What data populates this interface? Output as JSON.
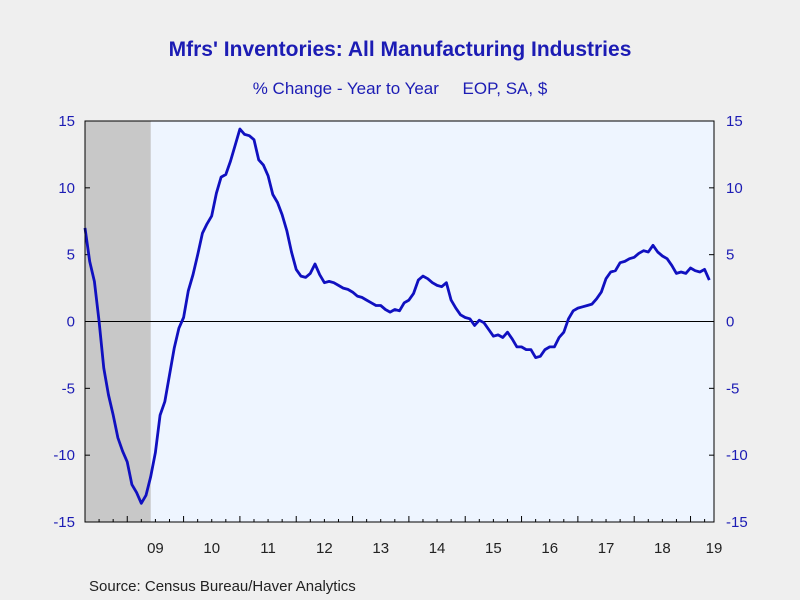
{
  "header": {
    "title": "Mfrs' Inventories: All Manufacturing Industries",
    "subtitle": "% Change - Year to Year     EOP, SA, $"
  },
  "footer": {
    "source": "Source:  Census Bureau/Haver Analytics"
  },
  "colors": {
    "line": "#1010c0",
    "plot_bg": "#eef5ff",
    "recession": "#c8c8c8",
    "text": "#1c1cb4"
  },
  "chart_data": {
    "type": "line",
    "title": "Mfrs' Inventories: All Manufacturing Industries",
    "subtitle": "% Change - Year to Year     EOP, SA, $",
    "xlabel": "",
    "ylabel": "",
    "xlim": [
      "2008-04",
      "2019-06"
    ],
    "ylim": [
      -15,
      15
    ],
    "yticks": [
      -15,
      -10,
      -5,
      0,
      5,
      10,
      15
    ],
    "ytick_labels": [
      "-15",
      "-10",
      "-5",
      "0",
      "5",
      "10",
      "15"
    ],
    "xtick_labels": [
      "09",
      "10",
      "11",
      "12",
      "13",
      "14",
      "15",
      "16",
      "17",
      "18",
      "19"
    ],
    "grid": false,
    "zero_line": true,
    "axes": "left and right",
    "recession_shading": {
      "start": "2008-04",
      "end": "2009-06"
    },
    "series": [
      {
        "points": [
          [
            "2008-04",
            7.0
          ],
          [
            "2008-05",
            4.5
          ],
          [
            "2008-06",
            3.0
          ],
          [
            "2008-07",
            0.0
          ],
          [
            "2008-08",
            -3.5
          ],
          [
            "2008-09",
            -5.5
          ],
          [
            "2008-10",
            -7.0
          ],
          [
            "2008-11",
            -8.7
          ],
          [
            "2008-12",
            -9.7
          ],
          [
            "2009-01",
            -10.5
          ],
          [
            "2009-02",
            -12.2
          ],
          [
            "2009-03",
            -12.8
          ],
          [
            "2009-04",
            -13.6
          ],
          [
            "2009-05",
            -13.0
          ],
          [
            "2009-06",
            -11.6
          ],
          [
            "2009-07",
            -9.8
          ],
          [
            "2009-08",
            -7.0
          ],
          [
            "2009-09",
            -6.0
          ],
          [
            "2009-10",
            -4.0
          ],
          [
            "2009-11",
            -2.0
          ],
          [
            "2009-12",
            -0.5
          ],
          [
            "2010-01",
            0.3
          ],
          [
            "2010-02",
            2.3
          ],
          [
            "2010-03",
            3.5
          ],
          [
            "2010-04",
            5.0
          ],
          [
            "2010-05",
            6.6
          ],
          [
            "2010-06",
            7.3
          ],
          [
            "2010-07",
            7.9
          ],
          [
            "2010-08",
            9.6
          ],
          [
            "2010-09",
            10.8
          ],
          [
            "2010-10",
            11.0
          ],
          [
            "2010-11",
            12.0
          ],
          [
            "2010-12",
            13.2
          ],
          [
            "2011-01",
            14.4
          ],
          [
            "2011-02",
            14.0
          ],
          [
            "2011-03",
            13.9
          ],
          [
            "2011-04",
            13.6
          ],
          [
            "2011-05",
            12.1
          ],
          [
            "2011-06",
            11.7
          ],
          [
            "2011-07",
            10.9
          ],
          [
            "2011-08",
            9.5
          ],
          [
            "2011-09",
            8.9
          ],
          [
            "2011-10",
            8.0
          ],
          [
            "2011-11",
            6.8
          ],
          [
            "2011-12",
            5.2
          ],
          [
            "2012-01",
            3.9
          ],
          [
            "2012-02",
            3.4
          ],
          [
            "2012-03",
            3.3
          ],
          [
            "2012-04",
            3.6
          ],
          [
            "2012-05",
            4.3
          ],
          [
            "2012-06",
            3.5
          ],
          [
            "2012-07",
            2.9
          ],
          [
            "2012-08",
            3.0
          ],
          [
            "2012-09",
            2.9
          ],
          [
            "2012-10",
            2.7
          ],
          [
            "2012-11",
            2.5
          ],
          [
            "2012-12",
            2.4
          ],
          [
            "2013-01",
            2.2
          ],
          [
            "2013-02",
            1.9
          ],
          [
            "2013-03",
            1.8
          ],
          [
            "2013-04",
            1.6
          ],
          [
            "2013-05",
            1.4
          ],
          [
            "2013-06",
            1.2
          ],
          [
            "2013-07",
            1.2
          ],
          [
            "2013-08",
            0.9
          ],
          [
            "2013-09",
            0.7
          ],
          [
            "2013-10",
            0.9
          ],
          [
            "2013-11",
            0.8
          ],
          [
            "2013-12",
            1.4
          ],
          [
            "2014-01",
            1.6
          ],
          [
            "2014-02",
            2.1
          ],
          [
            "2014-03",
            3.1
          ],
          [
            "2014-04",
            3.4
          ],
          [
            "2014-05",
            3.2
          ],
          [
            "2014-06",
            2.9
          ],
          [
            "2014-07",
            2.7
          ],
          [
            "2014-08",
            2.6
          ],
          [
            "2014-09",
            2.9
          ],
          [
            "2014-10",
            1.6
          ],
          [
            "2014-11",
            1.0
          ],
          [
            "2014-12",
            0.5
          ],
          [
            "2015-01",
            0.3
          ],
          [
            "2015-02",
            0.2
          ],
          [
            "2015-03",
            -0.3
          ],
          [
            "2015-04",
            0.1
          ],
          [
            "2015-05",
            -0.1
          ],
          [
            "2015-06",
            -0.6
          ],
          [
            "2015-07",
            -1.1
          ],
          [
            "2015-08",
            -1.0
          ],
          [
            "2015-09",
            -1.2
          ],
          [
            "2015-10",
            -0.8
          ],
          [
            "2015-11",
            -1.3
          ],
          [
            "2015-12",
            -1.9
          ],
          [
            "2016-01",
            -1.9
          ],
          [
            "2016-02",
            -2.1
          ],
          [
            "2016-03",
            -2.1
          ],
          [
            "2016-04",
            -2.7
          ],
          [
            "2016-05",
            -2.6
          ],
          [
            "2016-06",
            -2.1
          ],
          [
            "2016-07",
            -1.9
          ],
          [
            "2016-08",
            -1.9
          ],
          [
            "2016-09",
            -1.2
          ],
          [
            "2016-10",
            -0.8
          ],
          [
            "2016-11",
            0.2
          ],
          [
            "2016-12",
            0.8
          ],
          [
            "2017-01",
            1.0
          ],
          [
            "2017-02",
            1.1
          ],
          [
            "2017-03",
            1.2
          ],
          [
            "2017-04",
            1.3
          ],
          [
            "2017-05",
            1.7
          ],
          [
            "2017-06",
            2.2
          ],
          [
            "2017-07",
            3.2
          ],
          [
            "2017-08",
            3.7
          ],
          [
            "2017-09",
            3.8
          ],
          [
            "2017-10",
            4.4
          ],
          [
            "2017-11",
            4.5
          ],
          [
            "2017-12",
            4.7
          ],
          [
            "2018-01",
            4.8
          ],
          [
            "2018-02",
            5.1
          ],
          [
            "2018-03",
            5.3
          ],
          [
            "2018-04",
            5.2
          ],
          [
            "2018-05",
            5.7
          ],
          [
            "2018-06",
            5.2
          ],
          [
            "2018-07",
            4.9
          ],
          [
            "2018-08",
            4.7
          ],
          [
            "2018-09",
            4.2
          ],
          [
            "2018-10",
            3.6
          ],
          [
            "2018-11",
            3.7
          ],
          [
            "2018-12",
            3.6
          ],
          [
            "2019-01",
            4.0
          ],
          [
            "2019-02",
            3.8
          ],
          [
            "2019-03",
            3.7
          ],
          [
            "2019-04",
            3.9
          ],
          [
            "2019-05",
            3.1
          ]
        ]
      }
    ]
  }
}
